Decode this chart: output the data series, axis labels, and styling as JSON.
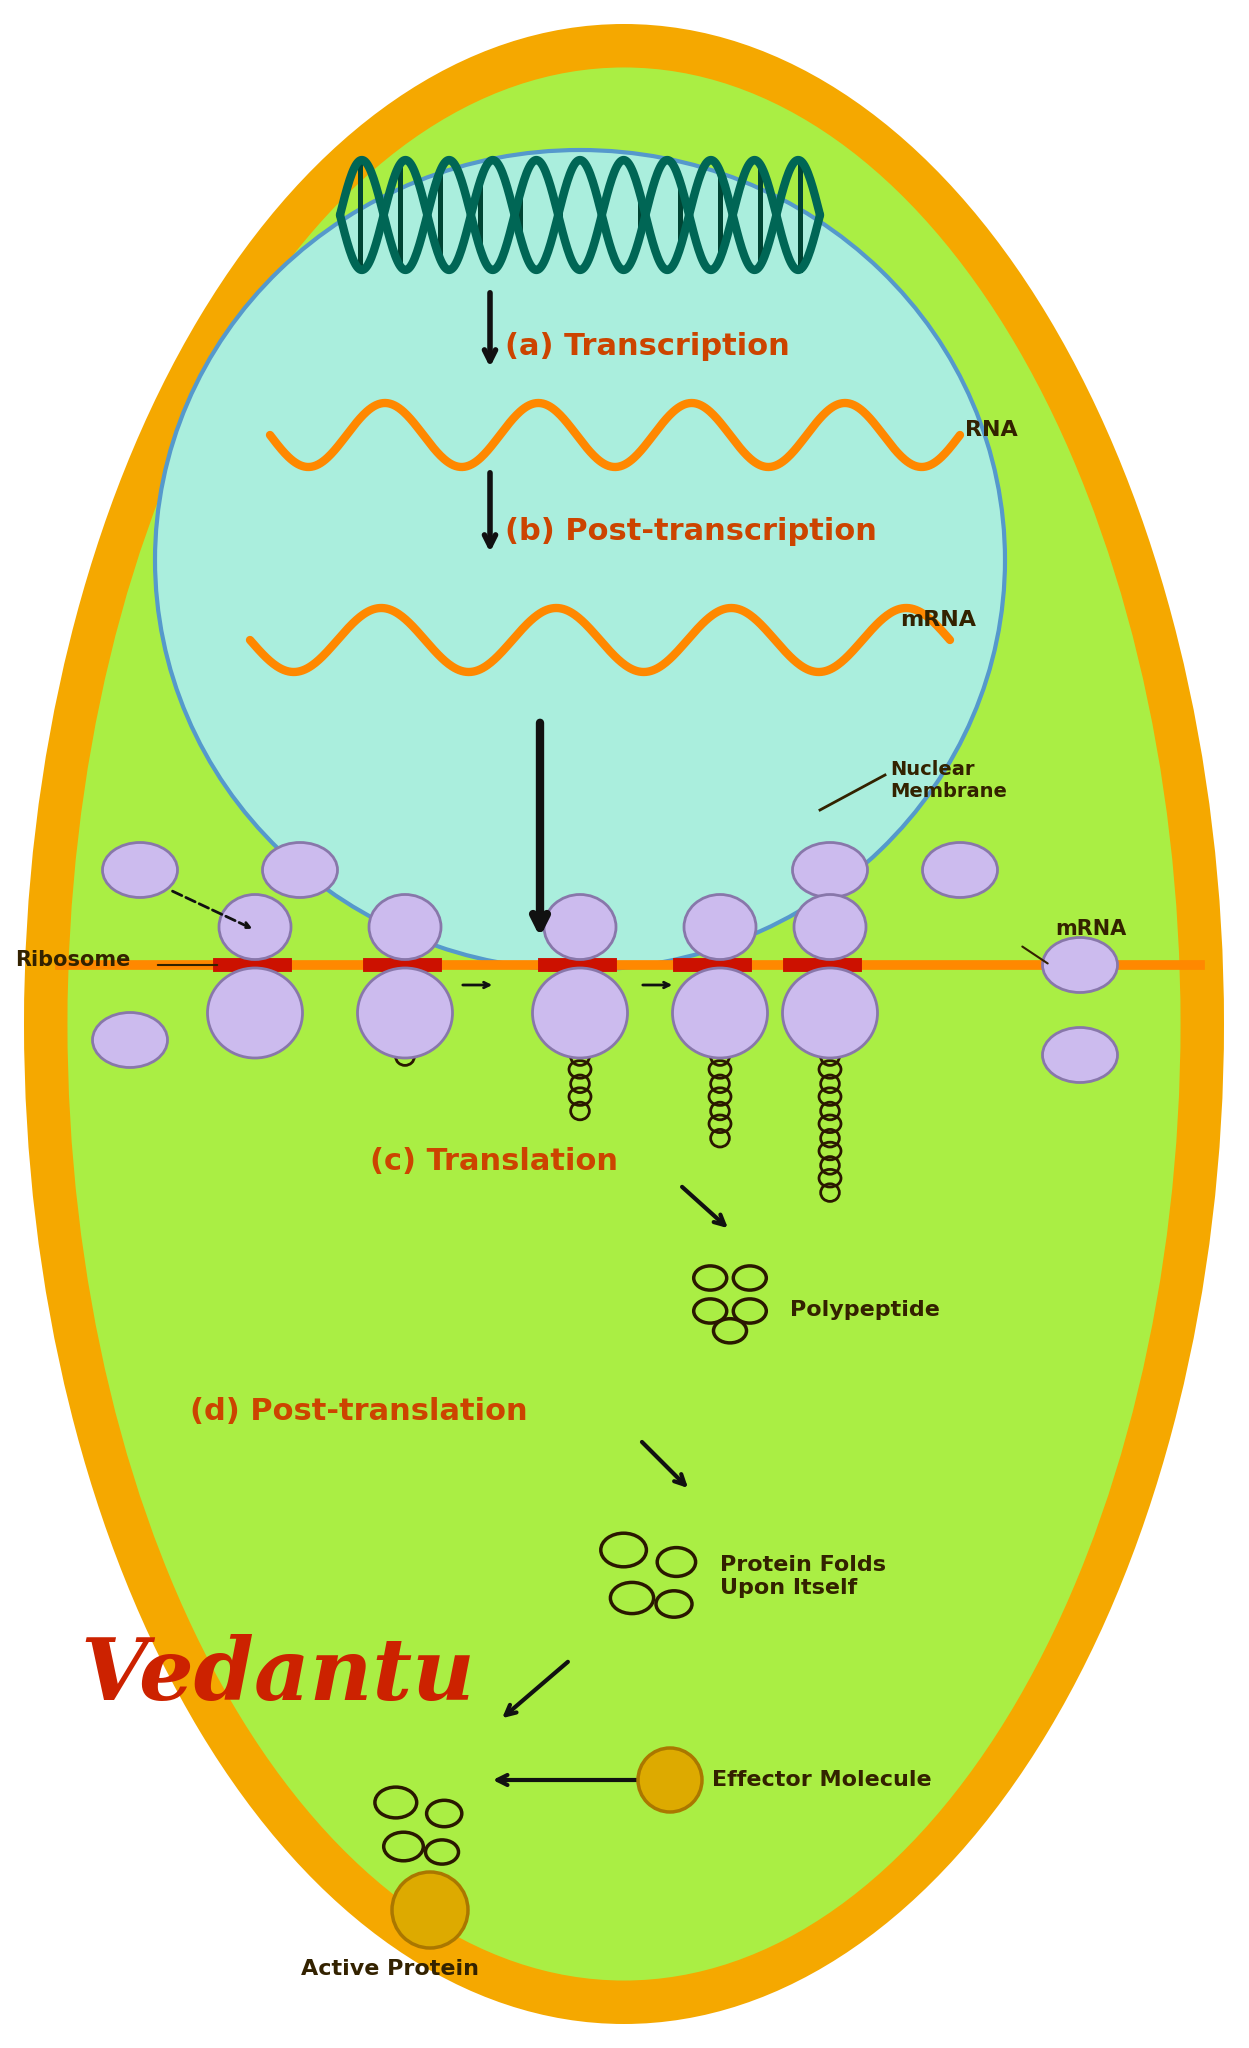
{
  "bg_outer_color": "#F5A800",
  "bg_cell_color": "#AAEE44",
  "nucleus_color": "#AAEEDD",
  "nucleus_border_color": "#5599CC",
  "arrow_color": "#111111",
  "rna_color": "#FF8800",
  "label_color_orange": "#CC4400",
  "label_color_dark": "#332200",
  "ribosome_color": "#CCBBEE",
  "ribosome_border": "#8877AA",
  "mrna_line_color": "#FF8800",
  "mrna_bar_color": "#CC1100",
  "vedantu_color": "#CC2200",
  "dna_color": "#006655",
  "chain_color": "#2a1800",
  "effector_color": "#DDAA00",
  "effector_border": "#AA7700",
  "labels": {
    "transcription": "(a) Transcription",
    "post_transcription": "(b) Post-transcription",
    "translation": "(c) Translation",
    "post_translation": "(d) Post-translation",
    "rna": "RNA",
    "mrna1": "mRNA",
    "mrna2": "mRNA",
    "nuclear_membrane": "Nuclear\nMembrane",
    "ribosome": "Ribosome",
    "polypeptide": "Polypeptide",
    "protein_folds": "Protein Folds\nUpon Itself",
    "effector": "Effector Molecule",
    "active_protein": "Active Protein",
    "vedantu": "Vedantu"
  }
}
